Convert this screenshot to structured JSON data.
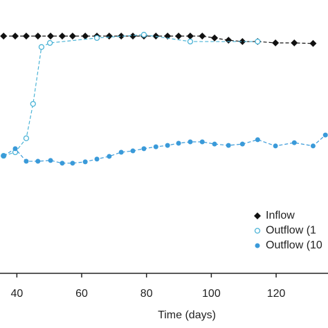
{
  "chart_data": {
    "type": "line",
    "x_label": "Time (days)",
    "xlim": [
      34.8,
      136
    ],
    "xticks": [
      40,
      60,
      80,
      100,
      120
    ],
    "ylim": [
      0,
      100
    ],
    "legend": "lower right",
    "series": [
      {
        "name": "Inflow",
        "color": "#111111",
        "marker": "diamond",
        "x": [
          35.9,
          39.5,
          42.9,
          46.5,
          50.4,
          54.0,
          57.2,
          61.1,
          64.7,
          68.5,
          72.2,
          75.8,
          79.2,
          82.9,
          86.5,
          89.9,
          93.5,
          97.2,
          101.0,
          105.3,
          109.6,
          114.3,
          119.8,
          125.6,
          131.4
        ],
        "values": [
          86.8,
          86.8,
          86.8,
          86.8,
          86.8,
          86.8,
          86.8,
          86.8,
          86.8,
          86.8,
          86.8,
          86.8,
          86.8,
          86.8,
          86.8,
          86.8,
          86.8,
          86.8,
          86.1,
          85.3,
          84.8,
          84.8,
          84.3,
          84.3,
          84.1
        ]
      },
      {
        "name": "Outflow (1",
        "color": "#4ab3d6",
        "marker": "open-circle",
        "x": [
          35.9,
          39.5,
          42.9,
          45.0,
          47.6,
          50.2,
          64.7,
          79.2,
          93.5,
          114.3
        ],
        "values": [
          43.0,
          44.3,
          49.4,
          62.0,
          82.8,
          84.3,
          86.1,
          87.3,
          84.8,
          84.8
        ]
      },
      {
        "name": "Outflow (10",
        "color": "#3a9ad9",
        "marker": "filled-circle",
        "x": [
          35.9,
          39.5,
          42.9,
          46.5,
          50.4,
          54.0,
          57.2,
          61.1,
          64.7,
          68.5,
          72.2,
          75.8,
          79.2,
          82.9,
          86.5,
          89.9,
          93.5,
          97.2,
          101.0,
          105.3,
          109.6,
          114.3,
          119.8,
          125.6,
          131.4,
          135.2
        ],
        "values": [
          43.0,
          45.6,
          41.0,
          41.0,
          41.3,
          40.3,
          40.3,
          40.8,
          41.8,
          42.8,
          44.3,
          44.8,
          45.6,
          46.3,
          46.8,
          47.6,
          48.1,
          48.1,
          47.3,
          46.8,
          47.3,
          48.9,
          46.6,
          47.8,
          46.6,
          50.6
        ]
      }
    ]
  }
}
